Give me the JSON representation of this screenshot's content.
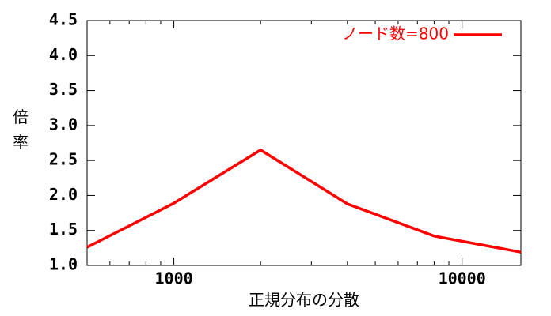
{
  "chart_data": {
    "type": "line",
    "xlabel": "正規分布の分散",
    "ylabel": "倍率",
    "x": [
      500,
      1000,
      2000,
      4000,
      8000,
      16000
    ],
    "series": [
      {
        "name": "ノード数=800",
        "color": "#ff0000",
        "values": [
          1.26,
          1.89,
          2.65,
          1.88,
          1.42,
          1.19
        ]
      }
    ],
    "xscale": "log",
    "xlim": [
      500,
      16000
    ],
    "xticks": [
      1000,
      10000
    ],
    "xminorticks": [
      600,
      700,
      800,
      900,
      2000,
      3000,
      4000,
      5000,
      6000,
      7000,
      8000,
      9000
    ],
    "ylim": [
      1,
      4.5
    ],
    "yticks": [
      {
        "value": 1,
        "label": "1.0"
      },
      1.5,
      {
        "value": 2,
        "label": "2.0"
      },
      2.5,
      {
        "value": 3,
        "label": "3.0"
      },
      3.5,
      {
        "value": 4,
        "label": "4.0"
      },
      4.5
    ],
    "legend": "upper right"
  }
}
